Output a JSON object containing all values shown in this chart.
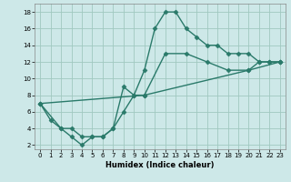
{
  "xlabel": "Humidex (Indice chaleur)",
  "ylabel": "",
  "background_color": "#cde8e8",
  "grid_color": "#a0c8c0",
  "line_color": "#2a7a6a",
  "xlim": [
    -0.5,
    23.5
  ],
  "ylim": [
    1.5,
    19
  ],
  "xticks": [
    0,
    1,
    2,
    3,
    4,
    5,
    6,
    7,
    8,
    9,
    10,
    11,
    12,
    13,
    14,
    15,
    16,
    17,
    18,
    19,
    20,
    21,
    22,
    23
  ],
  "yticks": [
    2,
    4,
    6,
    8,
    10,
    12,
    14,
    16,
    18
  ],
  "line1_x": [
    0,
    1,
    2,
    3,
    4,
    5,
    6,
    7,
    8,
    9,
    10,
    11,
    12,
    13,
    14,
    15,
    16,
    17,
    18,
    19,
    20,
    21,
    22,
    23
  ],
  "line1_y": [
    7,
    5,
    4,
    3,
    2,
    3,
    3,
    4,
    6,
    8,
    11,
    16,
    18,
    18,
    16,
    15,
    14,
    14,
    13,
    13,
    13,
    12,
    12,
    12
  ],
  "line2_x": [
    0,
    2,
    3,
    4,
    5,
    6,
    7,
    8,
    9,
    10,
    12,
    14,
    16,
    18,
    20,
    21,
    22,
    23
  ],
  "line2_y": [
    7,
    4,
    4,
    3,
    3,
    3,
    4,
    9,
    8,
    8,
    13,
    13,
    12,
    11,
    11,
    12,
    12,
    12
  ],
  "line3_x": [
    0,
    10,
    20,
    23
  ],
  "line3_y": [
    7,
    8,
    11,
    12
  ],
  "marker": "D",
  "marker_size": 2.5,
  "linewidth": 1.0,
  "tick_fontsize": 5,
  "xlabel_fontsize": 6
}
